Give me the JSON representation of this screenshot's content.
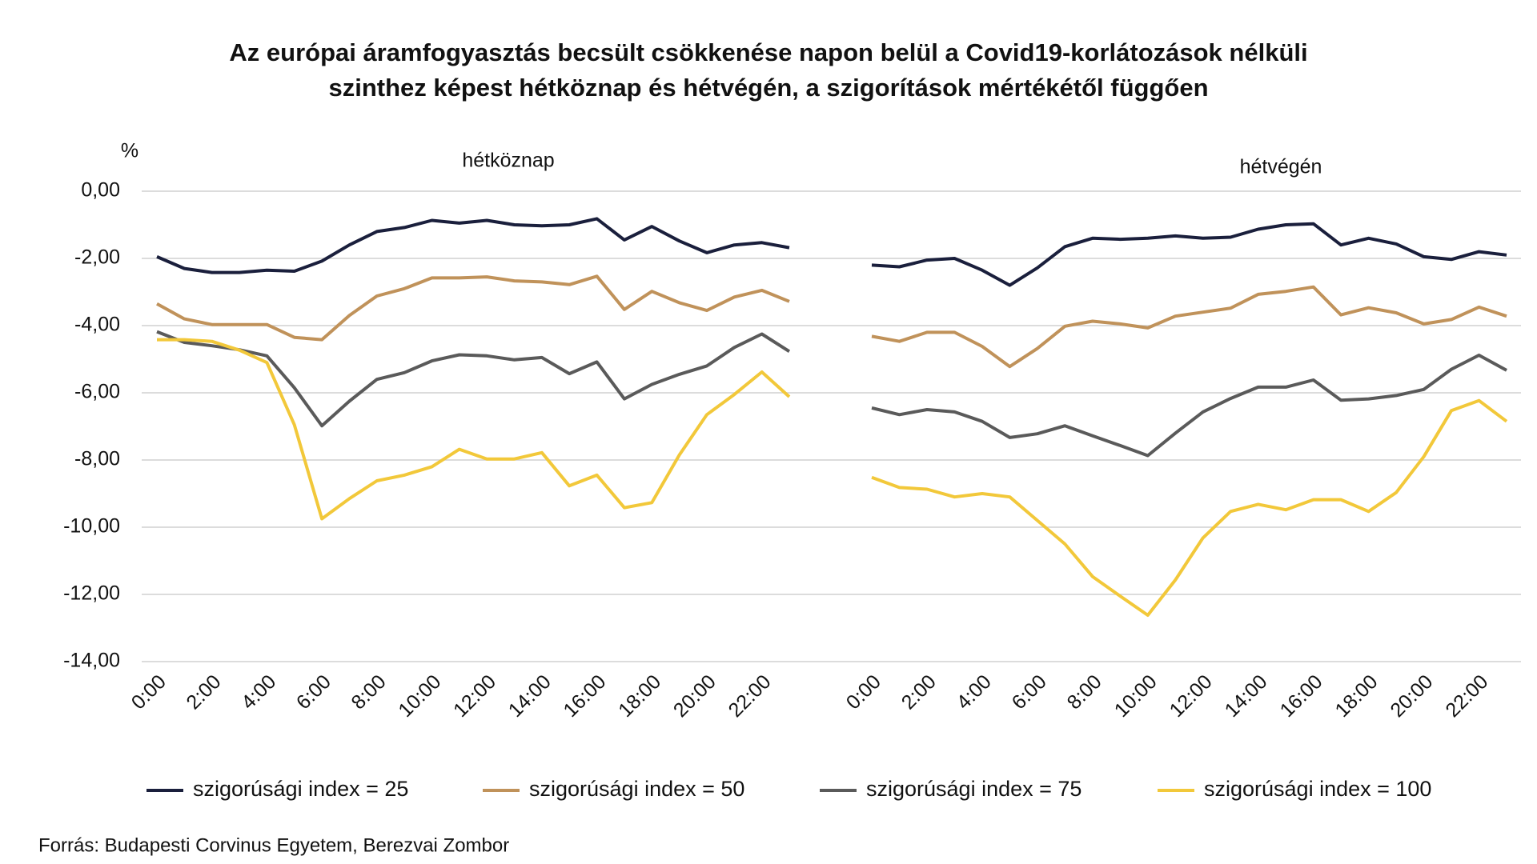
{
  "title": "Az európai áramfogyasztás becsült csökkenése napon belül a Covid19-korlátozások nélküli szinthez képest hétköznap és hétvégén, a szigorítások mértékétől függően",
  "y_unit": "%",
  "source": "Forrás: Budapesti Corvinus Egyetem, Berezvai Zombor",
  "chart_data": [
    {
      "type": "line",
      "title": "hétköznap",
      "categories": [
        "0:00",
        null,
        "2:00",
        null,
        "4:00",
        null,
        "6:00",
        null,
        "8:00",
        null,
        "10:00",
        null,
        "12:00",
        null,
        "14:00",
        null,
        "16:00",
        null,
        "18:00",
        null,
        "20:00",
        null,
        "22:00",
        null
      ],
      "ylim": [
        -14,
        0
      ],
      "yticks": [
        {
          "value": 0,
          "label": "0,00"
        },
        {
          "value": -2,
          "label": "-2,00"
        },
        {
          "value": -4,
          "label": "-4,00"
        },
        {
          "value": -6,
          "label": "-6,00"
        },
        {
          "value": -8,
          "label": "-8,00"
        },
        {
          "value": -10,
          "label": "-10,00"
        },
        {
          "value": -12,
          "label": "-12,00"
        },
        {
          "value": -14,
          "label": "-14,00"
        }
      ],
      "grid": true,
      "series": [
        {
          "name": "szigorúsági index = 25",
          "color": "#1a1f3c",
          "values": [
            -1.95,
            -2.3,
            -2.42,
            -2.42,
            -2.35,
            -2.38,
            -2.08,
            -1.6,
            -1.2,
            -1.08,
            -0.87,
            -0.95,
            -0.87,
            -1.0,
            -1.03,
            -1.0,
            -0.82,
            -1.45,
            -1.05,
            -1.48,
            -1.83,
            -1.6,
            -1.53,
            -1.68
          ]
        },
        {
          "name": "szigorúsági index = 50",
          "color": "#c0925a",
          "values": [
            -3.35,
            -3.8,
            -3.97,
            -3.97,
            -3.97,
            -4.35,
            -4.42,
            -3.7,
            -3.12,
            -2.9,
            -2.58,
            -2.58,
            -2.55,
            -2.67,
            -2.7,
            -2.78,
            -2.53,
            -3.52,
            -2.98,
            -3.32,
            -3.55,
            -3.15,
            -2.95,
            -3.28
          ]
        },
        {
          "name": "szigorúsági index = 75",
          "color": "#5a5a5a",
          "values": [
            -4.18,
            -4.5,
            -4.6,
            -4.72,
            -4.9,
            -5.85,
            -6.98,
            -6.25,
            -5.6,
            -5.4,
            -5.05,
            -4.87,
            -4.9,
            -5.02,
            -4.95,
            -5.43,
            -5.08,
            -6.18,
            -5.75,
            -5.45,
            -5.2,
            -4.65,
            -4.25,
            -4.77
          ]
        },
        {
          "name": "szigorúsági index = 100",
          "color": "#f2c83a",
          "values": [
            -4.42,
            -4.42,
            -4.47,
            -4.73,
            -5.1,
            -6.95,
            -9.75,
            -9.15,
            -8.62,
            -8.45,
            -8.2,
            -7.68,
            -7.97,
            -7.97,
            -7.78,
            -8.77,
            -8.45,
            -9.42,
            -9.27,
            -7.85,
            -6.65,
            -6.05,
            -5.38,
            -6.12
          ]
        }
      ]
    },
    {
      "type": "line",
      "title": "hétvégén",
      "categories": [
        "0:00",
        null,
        "2:00",
        null,
        "4:00",
        null,
        "6:00",
        null,
        "8:00",
        null,
        "10:00",
        null,
        "12:00",
        null,
        "14:00",
        null,
        "16:00",
        null,
        "18:00",
        null,
        "20:00",
        null,
        "22:00",
        null
      ],
      "ylim": [
        -14,
        0
      ],
      "series": [
        {
          "color": "#1a1f3c",
          "values": [
            -2.2,
            -2.25,
            -2.05,
            -2.0,
            -2.35,
            -2.8,
            -2.28,
            -1.65,
            -1.4,
            -1.43,
            -1.4,
            -1.33,
            -1.4,
            -1.37,
            -1.13,
            -1.0,
            -0.97,
            -1.6,
            -1.4,
            -1.57,
            -1.95,
            -2.03,
            -1.8,
            -1.9
          ]
        },
        {
          "color": "#c0925a",
          "values": [
            -4.32,
            -4.47,
            -4.2,
            -4.2,
            -4.62,
            -5.22,
            -4.68,
            -4.02,
            -3.87,
            -3.95,
            -4.07,
            -3.72,
            -3.6,
            -3.48,
            -3.07,
            -2.98,
            -2.85,
            -3.68,
            -3.47,
            -3.62,
            -3.95,
            -3.82,
            -3.45,
            -3.72
          ]
        },
        {
          "color": "#5a5a5a",
          "values": [
            -6.45,
            -6.65,
            -6.5,
            -6.57,
            -6.85,
            -7.33,
            -7.22,
            -6.98,
            -7.28,
            -7.57,
            -7.87,
            -7.2,
            -6.57,
            -6.17,
            -5.83,
            -5.83,
            -5.62,
            -6.22,
            -6.18,
            -6.08,
            -5.9,
            -5.3,
            -4.88,
            -5.33
          ]
        },
        {
          "color": "#f2c83a",
          "values": [
            -8.52,
            -8.82,
            -8.87,
            -9.1,
            -9.0,
            -9.1,
            -9.8,
            -10.5,
            -11.47,
            -12.05,
            -12.62,
            -11.57,
            -10.32,
            -9.53,
            -9.32,
            -9.48,
            -9.18,
            -9.18,
            -9.53,
            -8.97,
            -7.9,
            -6.53,
            -6.23,
            -6.85
          ]
        }
      ]
    }
  ]
}
